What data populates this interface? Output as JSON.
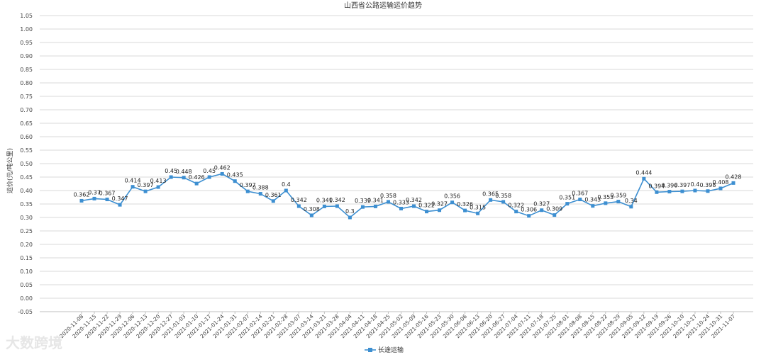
{
  "chart_data": {
    "type": "line",
    "title": "山西省公路运输运价趋势",
    "ylabel": "运价(元/吨公里)",
    "xlabel": "",
    "ylim": [
      -0.05,
      1.05
    ],
    "yticks": [
      "1.05",
      "1.00",
      "0.95",
      "0.90",
      "0.85",
      "0.80",
      "0.75",
      "0.70",
      "0.65",
      "0.60",
      "0.55",
      "0.50",
      "0.45",
      "0.40",
      "0.35",
      "0.30",
      "0.25",
      "0.20",
      "0.15",
      "0.10",
      "0.05",
      "0.00",
      "-0.05"
    ],
    "grid": true,
    "legend_position": "bottom",
    "categories": [
      "2020-11-08",
      "2020-11-15",
      "2020-11-22",
      "2020-11-29",
      "2020-12-06",
      "2020-12-13",
      "2020-12-20",
      "2020-12-27",
      "2021-01-03",
      "2021-01-10",
      "2021-01-17",
      "2021-01-24",
      "2021-01-31",
      "2021-02-07",
      "2021-02-14",
      "2021-02-21",
      "2021-02-28",
      "2021-03-07",
      "2021-03-14",
      "2021-03-21",
      "2021-03-28",
      "2021-04-04",
      "2021-04-11",
      "2021-04-18",
      "2021-04-25",
      "2021-05-02",
      "2021-05-09",
      "2021-05-16",
      "2021-05-23",
      "2021-05-30",
      "2021-06-06",
      "2021-06-13",
      "2021-06-20",
      "2021-06-27",
      "2021-07-04",
      "2021-07-11",
      "2021-07-18",
      "2021-07-25",
      "2021-08-01",
      "2021-08-08",
      "2021-08-15",
      "2021-08-22",
      "2021-08-29",
      "2021-09-05",
      "2021-09-12",
      "2021-09-19",
      "2021-09-26",
      "2021-10-10",
      "2021-10-17",
      "2021-10-24",
      "2021-10-31",
      "2021-11-07"
    ],
    "series": [
      {
        "name": "长途运输",
        "color": "#3d8fd1",
        "values": [
          0.362,
          0.37,
          0.367,
          0.347,
          0.414,
          0.397,
          0.413,
          0.45,
          0.448,
          0.426,
          0.45,
          0.462,
          0.435,
          0.397,
          0.388,
          0.361,
          0.4,
          0.342,
          0.308,
          0.341,
          0.342,
          0.3,
          0.339,
          0.341,
          0.358,
          0.333,
          0.342,
          0.322,
          0.327,
          0.356,
          0.326,
          0.315,
          0.365,
          0.358,
          0.322,
          0.306,
          0.327,
          0.309,
          0.351,
          0.367,
          0.343,
          0.353,
          0.359,
          0.34,
          0.444,
          0.394,
          0.396,
          0.397,
          0.4,
          0.398,
          0.408,
          0.428
        ],
        "labels": [
          "0.362",
          "0.37",
          "0.367",
          "0.347",
          "0.414",
          "0.397",
          "0.413",
          "0.45",
          "0.448",
          "0.426",
          "0.45",
          "0.462",
          "0.435",
          "0.397",
          "0.388",
          "0.361",
          "0.4",
          "0.342",
          "0.308",
          "0.341",
          "0.342",
          "0.3",
          "0.339",
          "0.341",
          "0.358",
          "0.333",
          "0.342",
          "0.322",
          "0.327",
          "0.356",
          "0.326",
          "0.315",
          "0.365",
          "0.358",
          "0.322",
          "0.306",
          "0.327",
          "0.309",
          "0.351",
          "0.367",
          "0.343",
          "0.353",
          "0.359",
          "0.34",
          "0.444",
          "0.394",
          "0.396",
          "0.397",
          "0.4",
          "0.398",
          "0.408",
          "0.428"
        ]
      }
    ]
  },
  "watermark": "大数跨境"
}
